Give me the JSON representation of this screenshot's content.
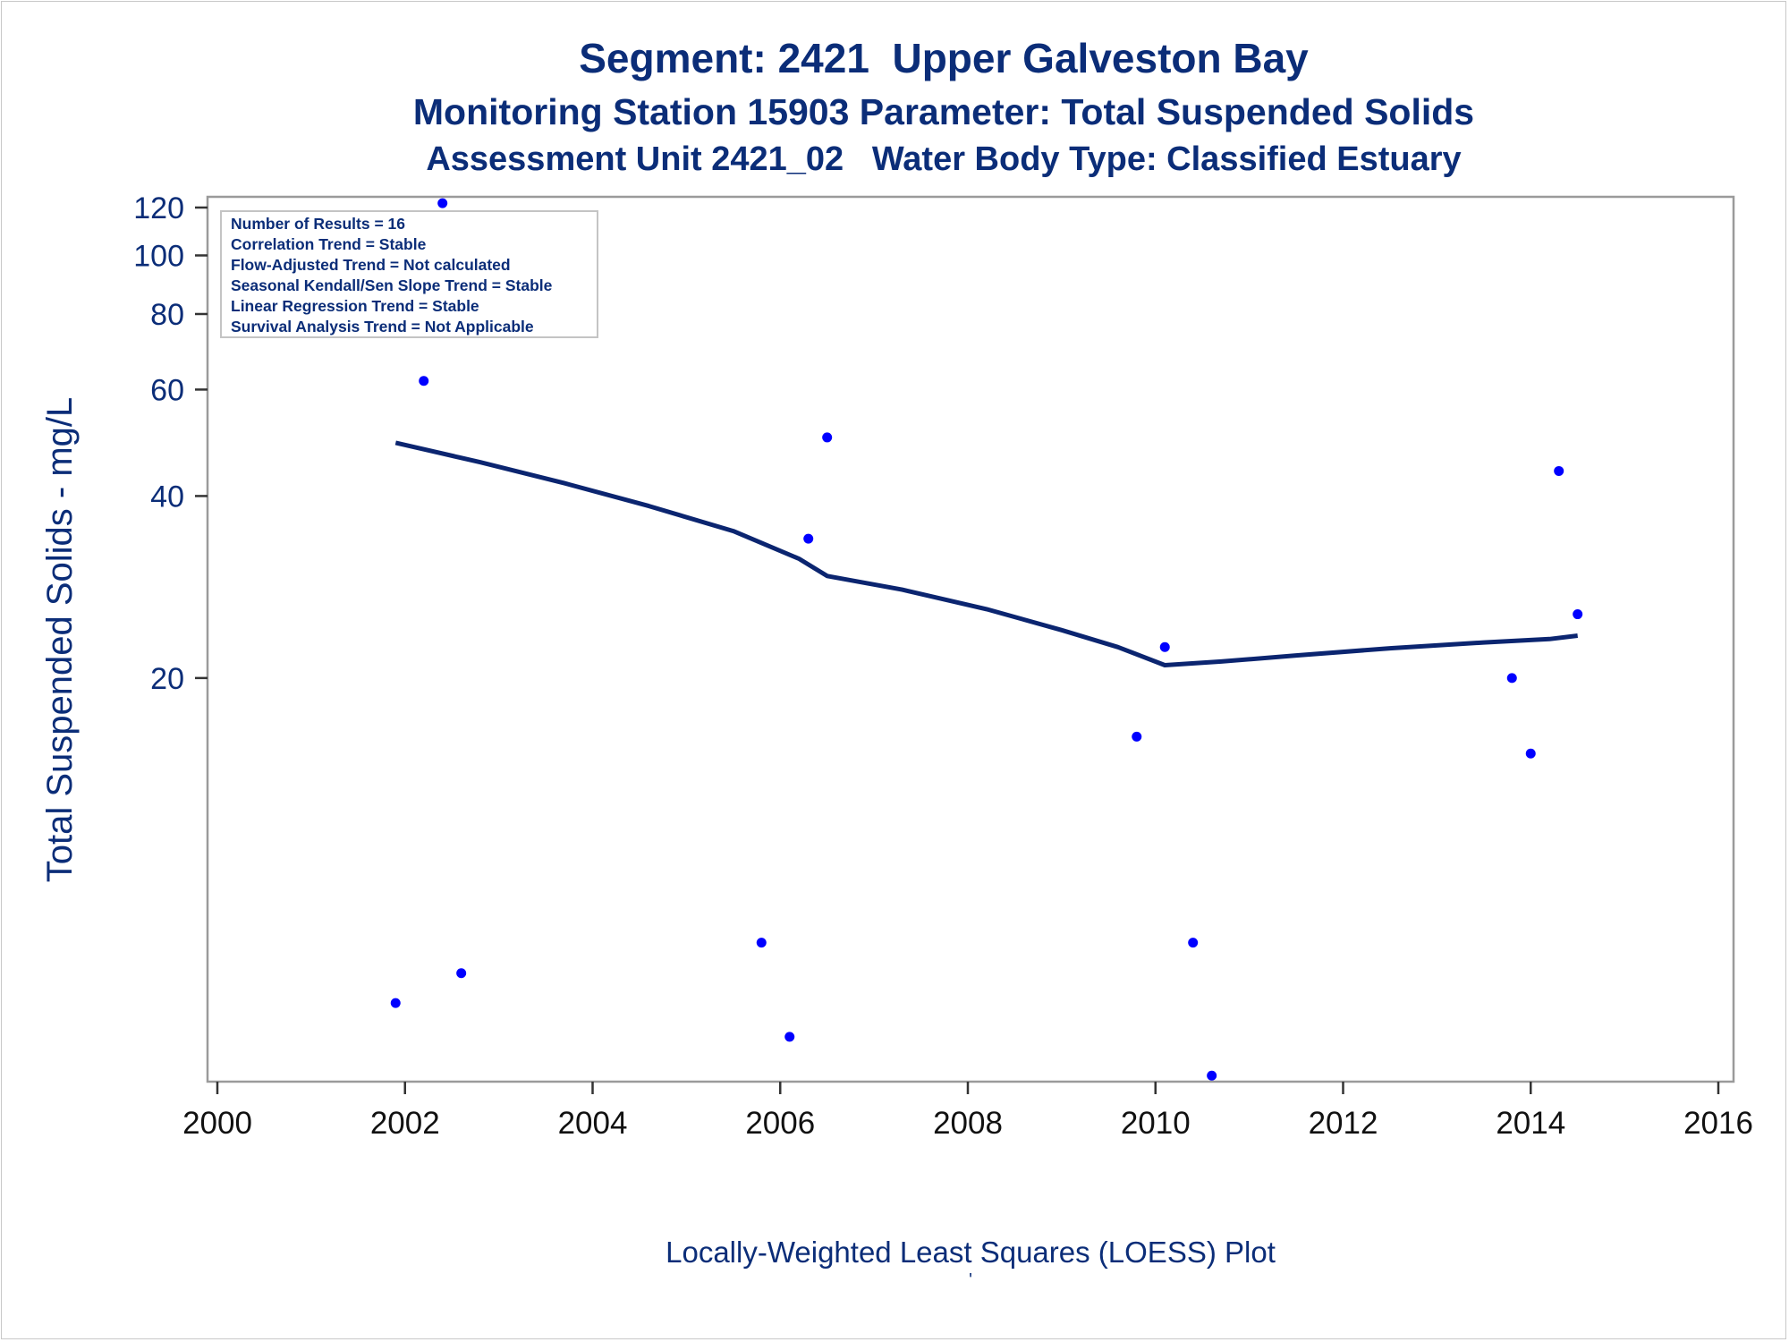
{
  "chart_data": {
    "type": "scatter",
    "title": "Segment: 2421  Upper Galveston Bay",
    "subtitle": "Monitoring Station 15903 Parameter: Total Suspended Solids",
    "subtitle2": "Assessment Unit 2421_02   Water Body Type: Classified Estuary",
    "xlabel": "",
    "ylabel": "Total Suspended Solids - mg/L",
    "yscale": "log",
    "xlim": [
      2000,
      2016
    ],
    "ylim": [
      4.3,
      125
    ],
    "x_ticks": [
      2000,
      2002,
      2004,
      2006,
      2008,
      2010,
      2012,
      2014,
      2016
    ],
    "y_ticks": [
      20,
      40,
      60,
      80,
      100,
      120
    ],
    "grid": false,
    "legend": "none",
    "point_color": "#0000ff",
    "line_color": "#0b2570",
    "text_color": "#0b2d78",
    "stats_box": {
      "position": "top-left",
      "lines": [
        "Number of Results = 16",
        "Correlation Trend = Stable",
        "Flow-Adjusted Trend = Not calculated",
        "Seasonal Kendall/Sen Slope Trend = Stable",
        "Linear Regression Trend = Stable",
        "Survival Analysis Trend = Not Applicable"
      ]
    },
    "series": [
      {
        "type": "scatter",
        "points": [
          {
            "x": 2001.9,
            "y": 5.8
          },
          {
            "x": 2002.2,
            "y": 62
          },
          {
            "x": 2002.4,
            "y": 122
          },
          {
            "x": 2002.6,
            "y": 6.5
          },
          {
            "x": 2005.8,
            "y": 7.3
          },
          {
            "x": 2006.1,
            "y": 5.1
          },
          {
            "x": 2006.3,
            "y": 34
          },
          {
            "x": 2006.5,
            "y": 50
          },
          {
            "x": 2009.8,
            "y": 16
          },
          {
            "x": 2010.1,
            "y": 22.5
          },
          {
            "x": 2010.4,
            "y": 7.3
          },
          {
            "x": 2010.6,
            "y": 4.4
          },
          {
            "x": 2013.8,
            "y": 20
          },
          {
            "x": 2014.0,
            "y": 15
          },
          {
            "x": 2014.3,
            "y": 44
          },
          {
            "x": 2014.5,
            "y": 25.5
          }
        ]
      },
      {
        "type": "line",
        "points": [
          {
            "x": 2001.9,
            "y": 49
          },
          {
            "x": 2002.8,
            "y": 45.5
          },
          {
            "x": 2003.7,
            "y": 42
          },
          {
            "x": 2004.6,
            "y": 38.5
          },
          {
            "x": 2005.5,
            "y": 35
          },
          {
            "x": 2006.2,
            "y": 31.5
          },
          {
            "x": 2006.5,
            "y": 29.5
          },
          {
            "x": 2007.3,
            "y": 28
          },
          {
            "x": 2008.2,
            "y": 26
          },
          {
            "x": 2009.0,
            "y": 24
          },
          {
            "x": 2009.6,
            "y": 22.5
          },
          {
            "x": 2010.1,
            "y": 21
          },
          {
            "x": 2010.7,
            "y": 21.3
          },
          {
            "x": 2011.5,
            "y": 21.8
          },
          {
            "x": 2012.5,
            "y": 22.4
          },
          {
            "x": 2013.5,
            "y": 22.9
          },
          {
            "x": 2014.2,
            "y": 23.2
          },
          {
            "x": 2014.5,
            "y": 23.5
          }
        ]
      }
    ]
  },
  "footnote": "Locally-Weighted Least Squares (LOESS) Plot",
  "footnote_mark": "'"
}
